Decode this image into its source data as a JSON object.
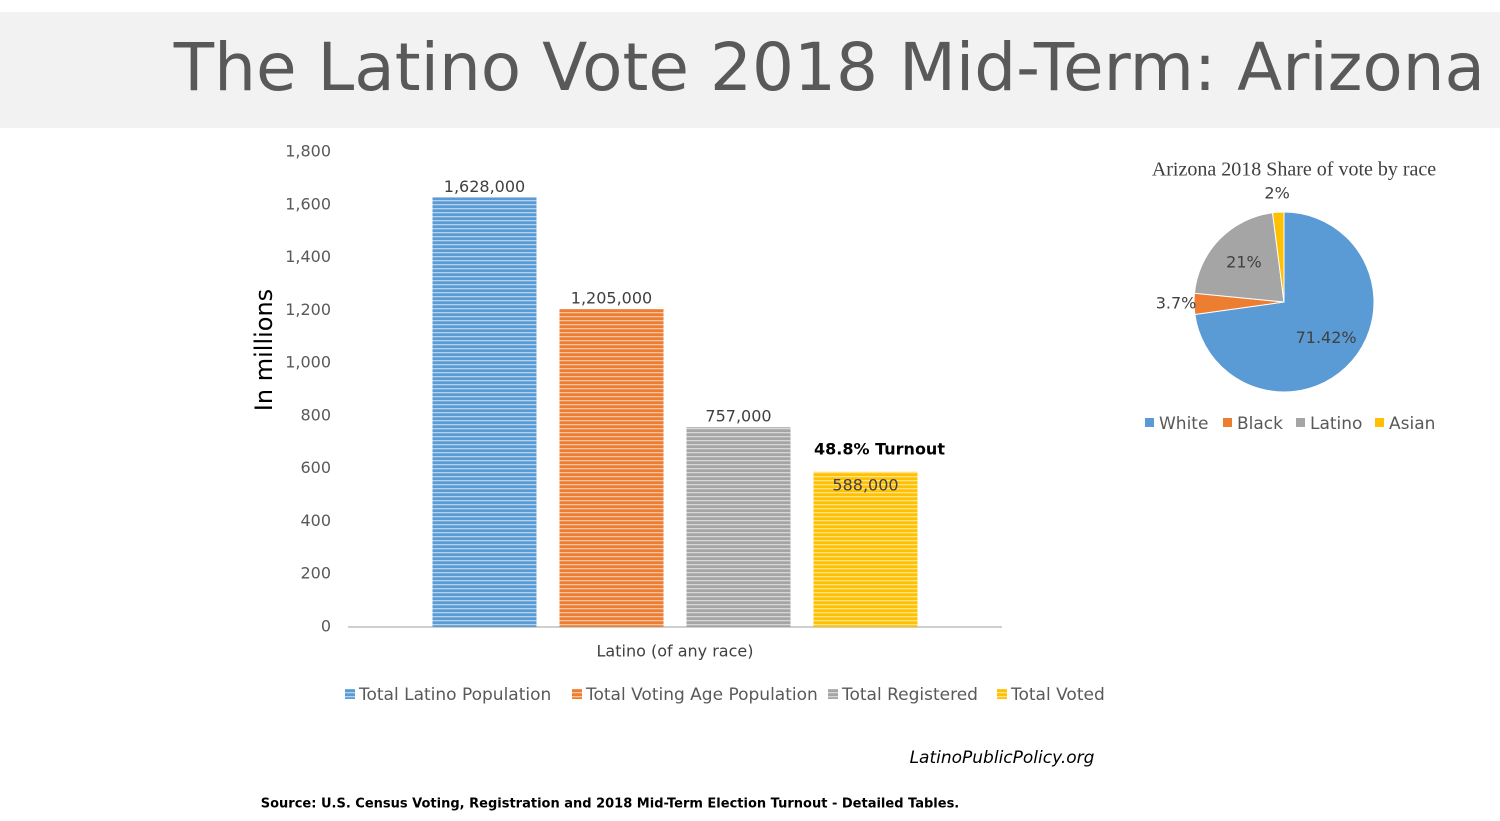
{
  "title": "The Latino Vote 2018 Mid-Term: Arizona",
  "chart_data": [
    {
      "type": "bar",
      "ylabel": "In millions",
      "categories": [
        "Latino (of any race)"
      ],
      "series": [
        {
          "name": "Total Latino Population",
          "color": "#5b9bd5",
          "values": [
            1628
          ],
          "value_labels": [
            "1,628,000"
          ]
        },
        {
          "name": "Total Voting Age Population",
          "color": "#ed7d31",
          "values": [
            1205
          ],
          "value_labels": [
            "1,205,000"
          ]
        },
        {
          "name": "Total Registered",
          "color": "#a5a5a5",
          "values": [
            757
          ],
          "value_labels": [
            "757,000"
          ]
        },
        {
          "name": "Total Voted",
          "color": "#ffc000",
          "values": [
            588
          ],
          "value_labels": [
            "588,000"
          ]
        }
      ],
      "annotation": "48.8% Turnout",
      "ylim": [
        0,
        1800
      ],
      "yticks": [
        0,
        200,
        400,
        600,
        800,
        {
          "value": 1000,
          "label": "1,000"
        },
        {
          "value": 1200,
          "label": "1,200"
        },
        {
          "value": 1400,
          "label": "1,400"
        },
        {
          "value": 1600,
          "label": "1,600"
        },
        {
          "value": 1800,
          "label": "1,800"
        }
      ],
      "grid": false,
      "legend": "bottom"
    },
    {
      "type": "pie",
      "title": "Arizona 2018 Share of vote by race",
      "categories": [
        "White",
        "Black",
        "Latino",
        "Asian"
      ],
      "values": [
        71.42,
        3.7,
        21,
        2
      ],
      "value_labels": [
        "71.42%",
        "3.7%",
        "21%",
        "2%"
      ],
      "colors": [
        "#5b9bd5",
        "#ed7d31",
        "#a5a5a5",
        "#ffc000"
      ],
      "legend": "bottom"
    }
  ],
  "website": "LatinoPublicPolicy.org",
  "source": "Source: U.S. Census Voting, Registration and 2018 Mid-Term Election Turnout - Detailed Tables."
}
